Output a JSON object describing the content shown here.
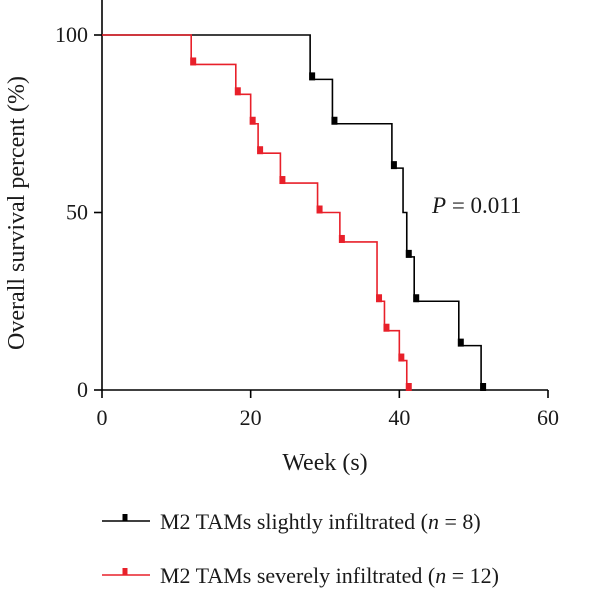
{
  "chart_data": {
    "type": "line",
    "step": true,
    "xlabel": "Week (s)",
    "ylabel": "Overall survival percent (%)",
    "xlim": [
      0,
      60
    ],
    "ylim": [
      0,
      100
    ],
    "xticks": [
      0,
      20,
      40,
      60
    ],
    "yticks": [
      0,
      50,
      100
    ],
    "grid": false,
    "legend_position": "bottom",
    "annotation": {
      "prefix": "P",
      "text": " = 0.011"
    },
    "series": [
      {
        "name": "M2 TAMs slightly infiltrated (",
        "n_label": "n",
        "n_text": " = 8)",
        "color": "#000000",
        "steps": [
          {
            "x": 0,
            "y": 100
          },
          {
            "x": 28,
            "y": 87.5
          },
          {
            "x": 31,
            "y": 75
          },
          {
            "x": 39,
            "y": 62.5
          },
          {
            "x": 40.5,
            "y": 50
          },
          {
            "x": 41,
            "y": 37.5
          },
          {
            "x": 42,
            "y": 25
          },
          {
            "x": 48,
            "y": 12.5
          },
          {
            "x": 51,
            "y": 0
          }
        ],
        "censor_marks": [
          {
            "x": 28,
            "y": 87.5
          },
          {
            "x": 31,
            "y": 75
          },
          {
            "x": 39,
            "y": 62.5
          },
          {
            "x": 41,
            "y": 37.5
          },
          {
            "x": 42,
            "y": 25
          },
          {
            "x": 48,
            "y": 12.5
          },
          {
            "x": 51,
            "y": 0
          }
        ]
      },
      {
        "name": "M2 TAMs severely infiltrated (",
        "n_label": "n",
        "n_text": " = 12)",
        "color": "#e8202a",
        "steps": [
          {
            "x": 0,
            "y": 100
          },
          {
            "x": 12,
            "y": 91.7
          },
          {
            "x": 18,
            "y": 83.3
          },
          {
            "x": 20,
            "y": 75
          },
          {
            "x": 21,
            "y": 66.7
          },
          {
            "x": 24,
            "y": 58.3
          },
          {
            "x": 29,
            "y": 50
          },
          {
            "x": 32,
            "y": 41.7
          },
          {
            "x": 37,
            "y": 25
          },
          {
            "x": 38,
            "y": 16.7
          },
          {
            "x": 40,
            "y": 8.3
          },
          {
            "x": 41,
            "y": 0
          }
        ],
        "censor_marks": [
          {
            "x": 12,
            "y": 91.7
          },
          {
            "x": 18,
            "y": 83.3
          },
          {
            "x": 20,
            "y": 75
          },
          {
            "x": 21,
            "y": 66.7
          },
          {
            "x": 24,
            "y": 58.3
          },
          {
            "x": 29,
            "y": 50
          },
          {
            "x": 32,
            "y": 41.7
          },
          {
            "x": 37,
            "y": 25
          },
          {
            "x": 38,
            "y": 16.7
          },
          {
            "x": 40,
            "y": 8.3
          },
          {
            "x": 41,
            "y": 0
          }
        ]
      }
    ]
  }
}
